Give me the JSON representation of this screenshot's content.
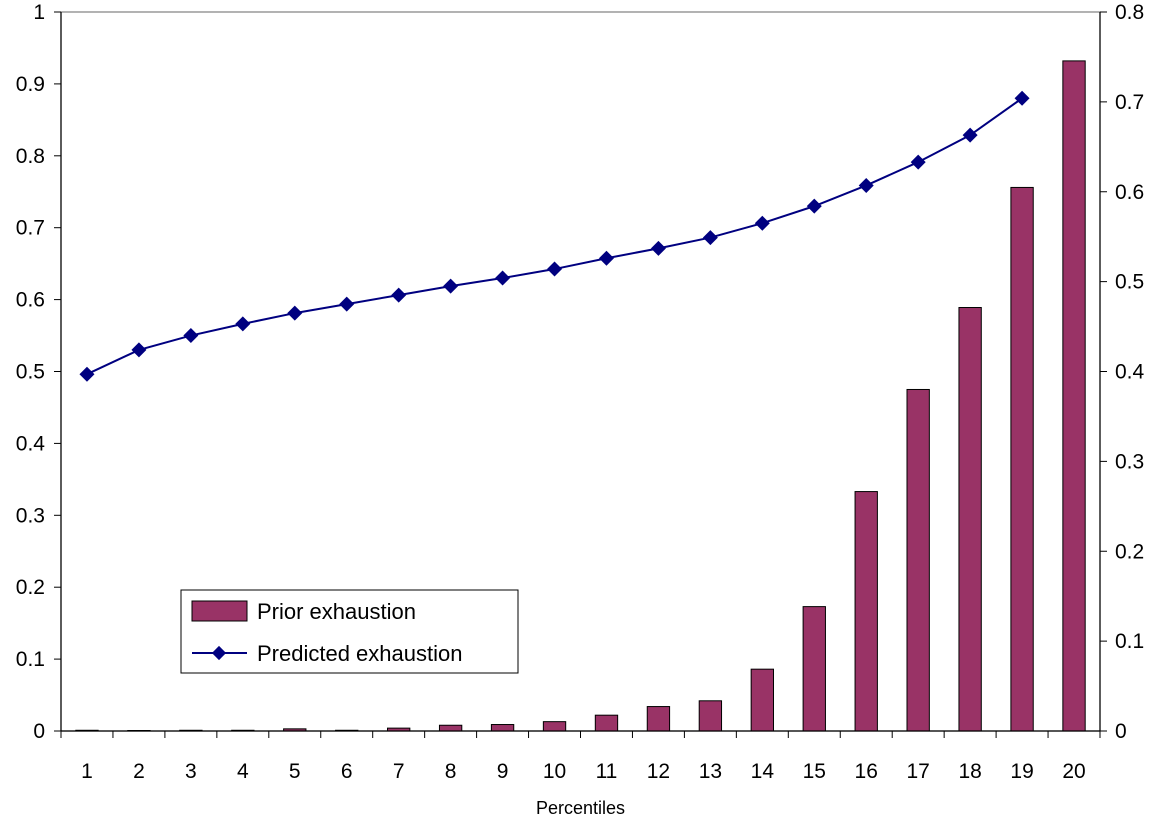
{
  "chart_data": {
    "type": "bar",
    "title": "",
    "xlabel": "Percentiles",
    "ylabel": "",
    "categories": [
      "1",
      "2",
      "3",
      "4",
      "5",
      "6",
      "7",
      "8",
      "9",
      "10",
      "11",
      "12",
      "13",
      "14",
      "15",
      "16",
      "17",
      "18",
      "19",
      "20"
    ],
    "series": [
      {
        "name": "Prior exhaustion",
        "type": "bar",
        "axis": "left",
        "color": "#993366",
        "values": [
          0.001,
          0,
          0.001,
          0.001,
          0.003,
          0.001,
          0.004,
          0.008,
          0.009,
          0.013,
          0.022,
          0.034,
          0.042,
          0.086,
          0.173,
          0.333,
          0.475,
          0.589,
          0.756,
          0.932
        ]
      },
      {
        "name": "Predicted exhaustion",
        "type": "line",
        "marker": "diamond",
        "axis": "right",
        "color": "#000080",
        "values": [
          0.397,
          0.424,
          0.44,
          0.453,
          0.465,
          0.475,
          0.485,
          0.495,
          0.504,
          0.514,
          0.526,
          0.537,
          0.549,
          0.565,
          0.584,
          0.607,
          0.633,
          0.663,
          0.704,
          null
        ]
      }
    ],
    "y_left": {
      "ylim": [
        0,
        1
      ],
      "ticks": [
        "0",
        "0.1",
        "0.2",
        "0.3",
        "0.4",
        "0.5",
        "0.6",
        "0.7",
        "0.8",
        "0.9",
        "1"
      ]
    },
    "y_right": {
      "ylim": [
        0,
        0.8
      ],
      "ticks": [
        "0",
        "0.1",
        "0.2",
        "0.3",
        "0.4",
        "0.5",
        "0.6",
        "0.7",
        "0.8"
      ]
    },
    "grid": false,
    "legend_position": "bottom-left"
  }
}
